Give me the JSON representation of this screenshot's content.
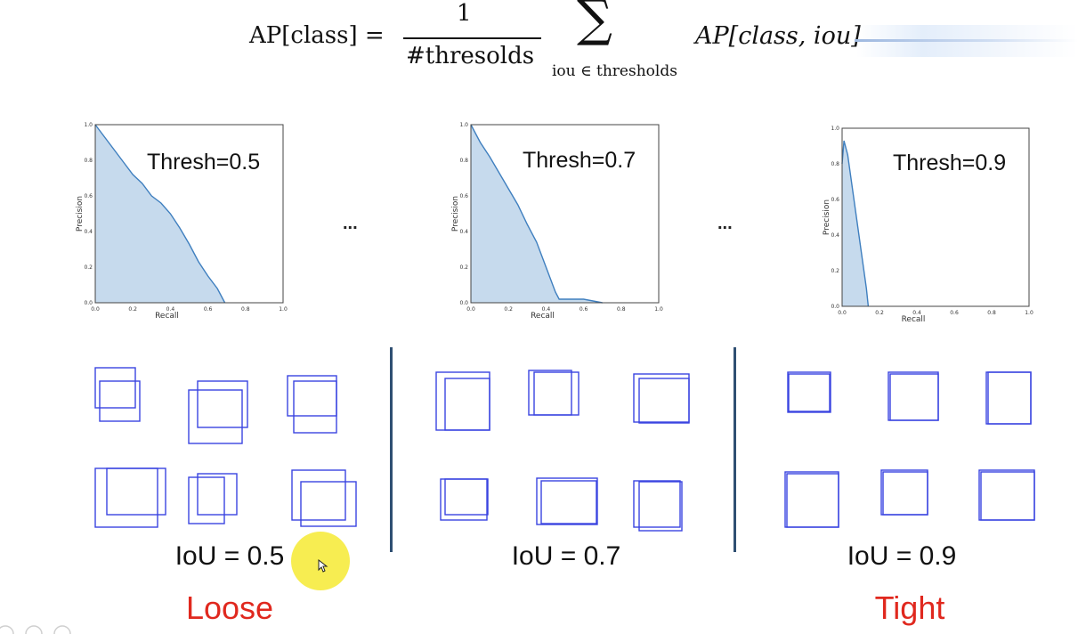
{
  "formula": {
    "lhs": "AP[class] =",
    "numerator": "1",
    "denominator": "#thresolds",
    "sum_symbol": "∑",
    "subscript": "iou ∈ thresholds",
    "rhs": "AP[class, iou]"
  },
  "ellipsis": "...",
  "chart_data": [
    {
      "type": "area",
      "title": "Thresh=0.5",
      "xlabel": "Recall",
      "ylabel": "Precision",
      "xlim": [
        0,
        1
      ],
      "ylim": [
        0,
        1
      ],
      "xticks": [
        "0.0",
        "0.2",
        "0.4",
        "0.6",
        "0.8",
        "1.0"
      ],
      "yticks": [
        "0.0",
        "0.2",
        "0.4",
        "0.6",
        "0.8",
        "1.0"
      ],
      "x": [
        0,
        0.05,
        0.1,
        0.15,
        0.2,
        0.25,
        0.3,
        0.35,
        0.4,
        0.45,
        0.5,
        0.55,
        0.6,
        0.65,
        0.68,
        0.69
      ],
      "y": [
        1.0,
        0.93,
        0.86,
        0.79,
        0.72,
        0.67,
        0.6,
        0.56,
        0.5,
        0.42,
        0.33,
        0.23,
        0.15,
        0.08,
        0.02,
        0.0
      ]
    },
    {
      "type": "area",
      "title": "Thresh=0.7",
      "xlabel": "Recall",
      "ylabel": "Precision",
      "xlim": [
        0,
        1
      ],
      "ylim": [
        0,
        1
      ],
      "xticks": [
        "0.0",
        "0.2",
        "0.4",
        "0.6",
        "0.8",
        "1.0"
      ],
      "yticks": [
        "0.0",
        "0.2",
        "0.4",
        "0.6",
        "0.8",
        "1.0"
      ],
      "x": [
        0,
        0.05,
        0.1,
        0.15,
        0.2,
        0.25,
        0.3,
        0.35,
        0.4,
        0.45,
        0.47,
        0.5,
        0.6,
        0.7
      ],
      "y": [
        1.0,
        0.9,
        0.82,
        0.73,
        0.64,
        0.55,
        0.44,
        0.34,
        0.2,
        0.06,
        0.02,
        0.02,
        0.02,
        0.0
      ]
    },
    {
      "type": "area",
      "title": "Thresh=0.9",
      "xlabel": "Recall",
      "ylabel": "Precision",
      "xlim": [
        0,
        1
      ],
      "ylim": [
        0,
        1
      ],
      "xticks": [
        "0.0",
        "0.2",
        "0.4",
        "0.6",
        "0.8",
        "1.0"
      ],
      "yticks": [
        "0.0",
        "0.2",
        "0.4",
        "0.6",
        "0.8",
        "1.0"
      ],
      "x": [
        0,
        0.01,
        0.03,
        0.05,
        0.07,
        0.09,
        0.11,
        0.13,
        0.14
      ],
      "y": [
        0.8,
        0.93,
        0.85,
        0.7,
        0.55,
        0.4,
        0.25,
        0.1,
        0.0
      ]
    }
  ],
  "iou_groups": [
    {
      "label": "IoU = 0.5",
      "tag": "Loose"
    },
    {
      "label": "IoU = 0.7",
      "tag": ""
    },
    {
      "label": "IoU = 0.9",
      "tag": "Tight"
    }
  ],
  "colors": {
    "curve_fill": "#c6daed",
    "curve_line": "#3f7fbf",
    "box_stroke": "#3a44e0",
    "divider": "#2f4f72",
    "tag": "#e0281e"
  }
}
